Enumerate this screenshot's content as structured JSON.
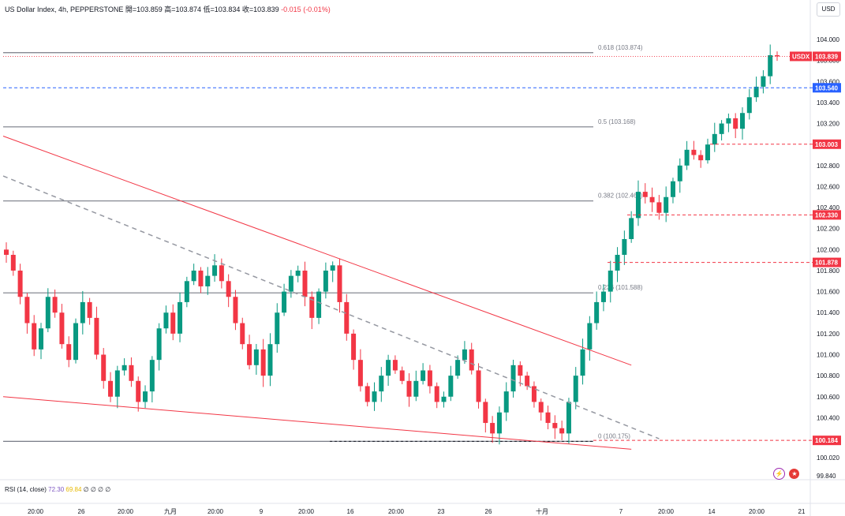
{
  "header": {
    "title": "US Dollar Index, 4h, PEPPERSTONE",
    "open": "開=103.859",
    "high": "高=103.874",
    "low": "低=103.834",
    "close": "收=103.839",
    "change": "-0.015 (-0.01%)"
  },
  "currency_button": "USD",
  "rsi": {
    "label": "RSI (14, close)",
    "value1": "72.30",
    "value2": "69.84",
    "extras": "∅ ∅ ∅ ∅"
  },
  "chart_data": {
    "type": "candlestick",
    "symbol": "USDX",
    "price_axis": {
      "ticks": [
        "104.000",
        "103.800",
        "103.600",
        "103.400",
        "103.200",
        "103.000",
        "102.800",
        "102.600",
        "102.400",
        "102.200",
        "102.000",
        "101.800",
        "101.600",
        "101.400",
        "101.200",
        "101.000",
        "100.800",
        "100.600",
        "100.400",
        "100.200",
        "100.020",
        "99.840"
      ],
      "range": [
        99.78,
        104.2
      ]
    },
    "time_axis": [
      "20:00",
      "26",
      "20:00",
      "九月",
      "20:00",
      "9",
      "20:00",
      "16",
      "20:00",
      "23",
      "26",
      "十月",
      "7",
      "20:00",
      "14",
      "20:00",
      "21"
    ],
    "fib_levels": [
      {
        "label": "0.618 (103.874)",
        "value": 103.874
      },
      {
        "label": "0.5 (103.168)",
        "value": 103.168
      },
      {
        "label": "0.382 (102.463)",
        "value": 102.463
      },
      {
        "label": "0.236 (101.588)",
        "value": 101.588
      },
      {
        "label": "0 (100.175)",
        "value": 100.175
      }
    ],
    "price_labels": [
      {
        "text": "USDX",
        "value": 103.839,
        "color": "#f23645"
      },
      {
        "text": "103.839",
        "value": 103.839,
        "color": "#f23645"
      },
      {
        "text": "103.540",
        "value": 103.54,
        "color": "#2962ff"
      },
      {
        "text": "103.003",
        "value": 103.003,
        "color": "#f23645"
      },
      {
        "text": "102.330",
        "value": 102.33,
        "color": "#f23645"
      },
      {
        "text": "101.878",
        "value": 101.878,
        "color": "#f23645"
      },
      {
        "text": "100.184",
        "value": 100.184,
        "color": "#f23645"
      }
    ],
    "closes": [
      101.95,
      101.8,
      101.55,
      101.3,
      101.05,
      101.25,
      101.55,
      101.4,
      101.1,
      100.95,
      101.3,
      101.5,
      101.35,
      101.0,
      100.75,
      100.6,
      100.85,
      100.9,
      100.75,
      100.55,
      100.65,
      100.95,
      101.25,
      101.4,
      101.2,
      101.5,
      101.7,
      101.8,
      101.65,
      101.75,
      101.85,
      101.7,
      101.55,
      101.3,
      101.1,
      100.9,
      101.05,
      100.8,
      101.1,
      101.4,
      101.6,
      101.75,
      101.8,
      101.55,
      101.35,
      101.6,
      101.8,
      101.85,
      101.5,
      101.2,
      100.95,
      100.7,
      100.55,
      100.65,
      100.8,
      100.95,
      100.85,
      100.75,
      100.6,
      100.75,
      100.85,
      100.7,
      100.55,
      100.6,
      100.8,
      100.95,
      101.05,
      100.85,
      100.55,
      100.35,
      100.25,
      100.45,
      100.65,
      100.9,
      100.8,
      100.7,
      100.55,
      100.45,
      100.35,
      100.3,
      100.25,
      100.55,
      100.8,
      101.05,
      101.3,
      101.5,
      101.6,
      101.8,
      101.95,
      102.1,
      102.3,
      102.55,
      102.5,
      102.45,
      102.35,
      102.5,
      102.65,
      102.8,
      102.95,
      102.9,
      102.85,
      103.0,
      103.1,
      103.2,
      103.25,
      103.15,
      103.3,
      103.45,
      103.55,
      103.65,
      103.85,
      103.839
    ],
    "trendlines": [
      {
        "name": "upper-red",
        "from": [
          "idx 0",
          103.08
        ],
        "to": [
          "idx 90",
          100.9
        ]
      },
      {
        "name": "lower-red",
        "from": [
          "idx 0",
          100.6
        ],
        "to": [
          "idx 90",
          100.1
        ]
      },
      {
        "name": "mid-dashed-gray",
        "from": [
          "idx 0",
          102.7
        ],
        "to": [
          "idx 94",
          100.2
        ]
      }
    ]
  },
  "colors": {
    "up": "#089981",
    "down": "#f23645",
    "fib": "#787b86",
    "dashed_blue": "#2962ff"
  }
}
